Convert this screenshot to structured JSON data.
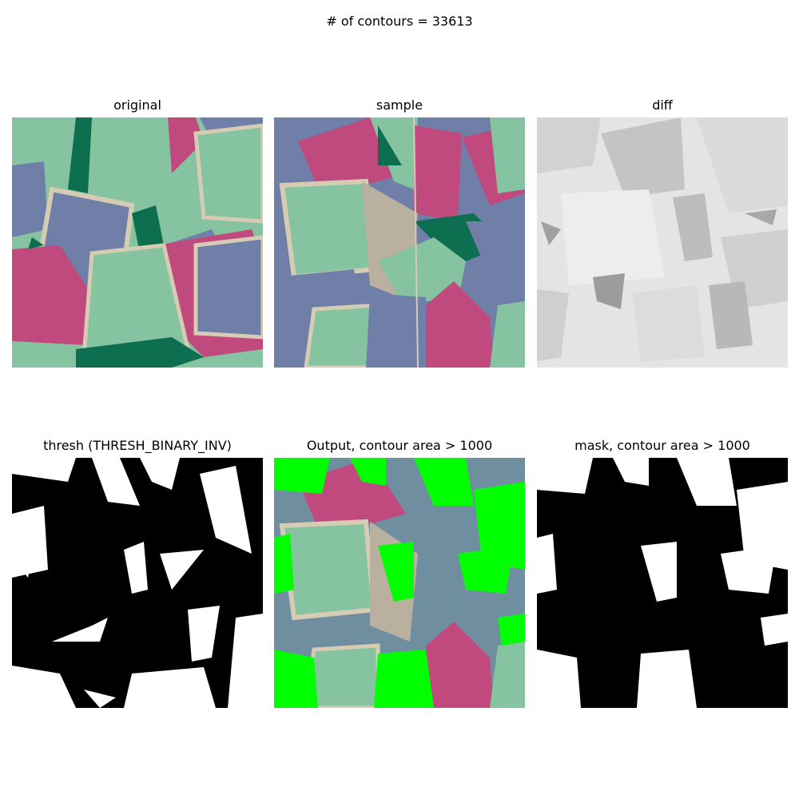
{
  "figure": {
    "suptitle": "# of contours = 33613",
    "panels": [
      {
        "title": "original"
      },
      {
        "title": "sample"
      },
      {
        "title": "diff"
      },
      {
        "title": "thresh (THRESH_BINARY_INV)"
      },
      {
        "title": "Output, contour area > 1000"
      },
      {
        "title": "mask, contour area > 1000"
      }
    ]
  },
  "colors": {
    "green_fabric": "#86c3a0",
    "blue_fabric": "#6f7fa8",
    "pink_fabric": "#c04a7e",
    "dark_green": "#0d6f50",
    "seam_beige": "#d6cbb3",
    "highlight_green": "#00ff00"
  }
}
